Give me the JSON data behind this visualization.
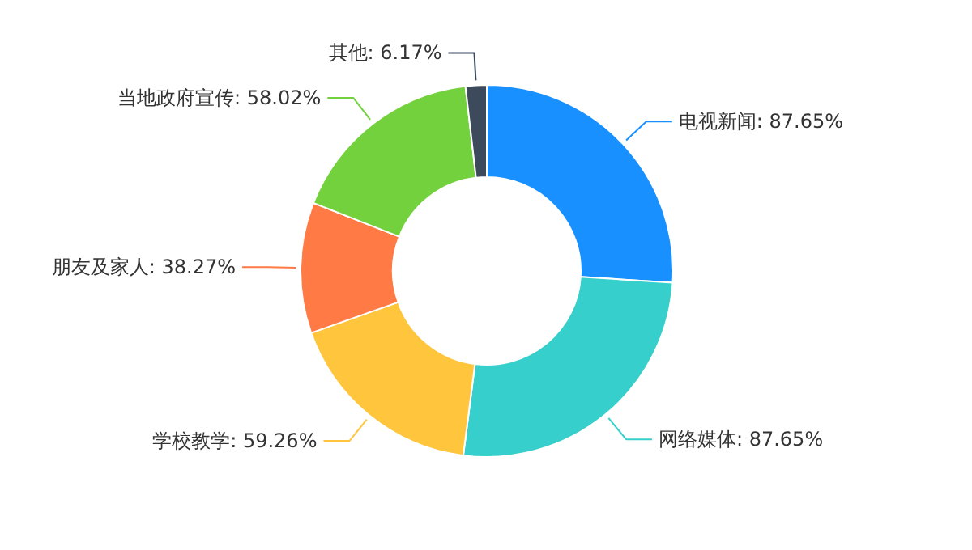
{
  "chart_data": {
    "type": "donut",
    "categories": [
      "电视新闻",
      "网络媒体",
      "学校教学",
      "朋友及家人",
      "当地政府宣传",
      "其他"
    ],
    "values": [
      87.65,
      87.65,
      59.26,
      38.27,
      58.02,
      6.17
    ],
    "value_labels": [
      "87.65%",
      "87.65%",
      "59.26%",
      "38.27%",
      "58.02%",
      "6.17%"
    ],
    "colors": [
      "#1890ff",
      "#36cfcb",
      "#ffc53d",
      "#ff7a45",
      "#73d13d",
      "#3d4a5c"
    ]
  }
}
